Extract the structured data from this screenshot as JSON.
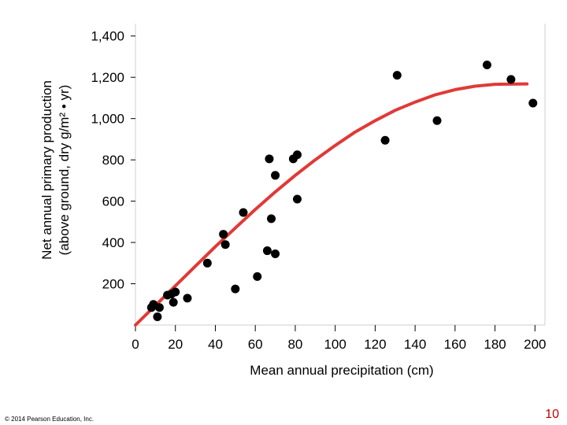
{
  "chart_data": {
    "type": "scatter",
    "xlabel": "Mean annual precipitation (cm)",
    "ylabel_line1": "Net annual primary production",
    "ylabel_line2": "(above ground, dry g/m² • yr)",
    "xlim": [
      0,
      205
    ],
    "ylim": [
      0,
      1460
    ],
    "x_ticks": [
      0,
      20,
      40,
      60,
      80,
      100,
      120,
      140,
      160,
      180,
      200
    ],
    "x_tick_labels": [
      "0",
      "20",
      "40",
      "60",
      "80",
      "100",
      "120",
      "140",
      "160",
      "180",
      "200"
    ],
    "y_ticks": [
      200,
      400,
      600,
      800,
      1000,
      1200,
      1400
    ],
    "y_tick_labels": [
      "200",
      "400",
      "600",
      "800",
      "1,000",
      "1,200",
      "1,400"
    ],
    "grid": false,
    "series": [
      {
        "kind": "points",
        "color": "#000000",
        "points": [
          [
            8,
            85
          ],
          [
            9,
            100
          ],
          [
            11,
            40
          ],
          [
            12,
            85
          ],
          [
            16,
            145
          ],
          [
            18,
            150
          ],
          [
            19,
            110
          ],
          [
            20,
            160
          ],
          [
            26,
            130
          ],
          [
            36,
            300
          ],
          [
            44,
            440
          ],
          [
            45,
            390
          ],
          [
            50,
            175
          ],
          [
            54,
            545
          ],
          [
            61,
            235
          ],
          [
            66,
            360
          ],
          [
            67,
            805
          ],
          [
            68,
            515
          ],
          [
            70,
            345
          ],
          [
            70,
            725
          ],
          [
            79,
            805
          ],
          [
            81,
            825
          ],
          [
            81,
            610
          ],
          [
            125,
            895
          ],
          [
            131,
            1210
          ],
          [
            151,
            990
          ],
          [
            176,
            1260
          ],
          [
            188,
            1190
          ],
          [
            199,
            1075
          ]
        ]
      },
      {
        "kind": "curve",
        "color": "#e03a36",
        "points": [
          [
            0,
            0
          ],
          [
            10,
            95
          ],
          [
            20,
            190
          ],
          [
            30,
            285
          ],
          [
            40,
            380
          ],
          [
            50,
            470
          ],
          [
            60,
            560
          ],
          [
            70,
            645
          ],
          [
            80,
            725
          ],
          [
            90,
            800
          ],
          [
            100,
            870
          ],
          [
            110,
            935
          ],
          [
            120,
            990
          ],
          [
            130,
            1040
          ],
          [
            140,
            1080
          ],
          [
            150,
            1115
          ],
          [
            160,
            1140
          ],
          [
            170,
            1157
          ],
          [
            180,
            1166
          ],
          [
            196,
            1168
          ]
        ]
      }
    ]
  },
  "footer": {
    "copyright": "© 2014 Pearson Education, Inc.",
    "page_number": "10"
  }
}
